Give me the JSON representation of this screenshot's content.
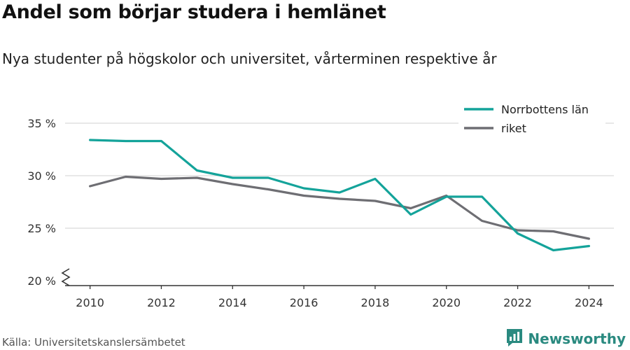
{
  "header": {
    "title": "Andel som börjar studera i hemlänet",
    "subtitle": "Nya studenter på högskolor och universitet, vårterminen respektive år"
  },
  "footer": {
    "source": "Källa: Universitetskanslersämbetet",
    "brand": "Newsworthy"
  },
  "icons": {
    "brand_logo": "bar-chart-logo-icon",
    "axis_break": "zigzag-axis-break-icon"
  },
  "colors": {
    "norrbotten": "#14a39a",
    "riket": "#6e6e73",
    "brand": "#2a8a80"
  },
  "chart_data": {
    "type": "line",
    "title": "Andel som börjar studera i hemlänet",
    "subtitle": "Nya studenter på högskolor och universitet, vårterminen respektive år",
    "x": [
      2010,
      2011,
      2012,
      2013,
      2014,
      2015,
      2016,
      2017,
      2018,
      2019,
      2020,
      2021,
      2022,
      2023,
      2024
    ],
    "xticks": [
      "2010",
      "2012",
      "2014",
      "2016",
      "2018",
      "2020",
      "2022",
      "2024"
    ],
    "yticks": [
      "20 %",
      "25 %",
      "30 %",
      "35 %"
    ],
    "ylim": [
      20,
      35
    ],
    "xlim": [
      2009.3,
      2024.7
    ],
    "grid": true,
    "legend_position": "top-right",
    "series": [
      {
        "name": "Norrbottens län",
        "color": "#14a39a",
        "values": [
          33.4,
          33.3,
          33.3,
          30.5,
          29.8,
          29.8,
          28.8,
          28.4,
          29.7,
          26.3,
          28.0,
          28.0,
          24.5,
          22.9,
          23.3
        ]
      },
      {
        "name": "riket",
        "color": "#6e6e73",
        "values": [
          29.0,
          29.9,
          29.7,
          29.8,
          29.2,
          28.7,
          28.1,
          27.8,
          27.6,
          26.9,
          28.1,
          25.7,
          24.8,
          24.7,
          24.0
        ]
      }
    ]
  }
}
